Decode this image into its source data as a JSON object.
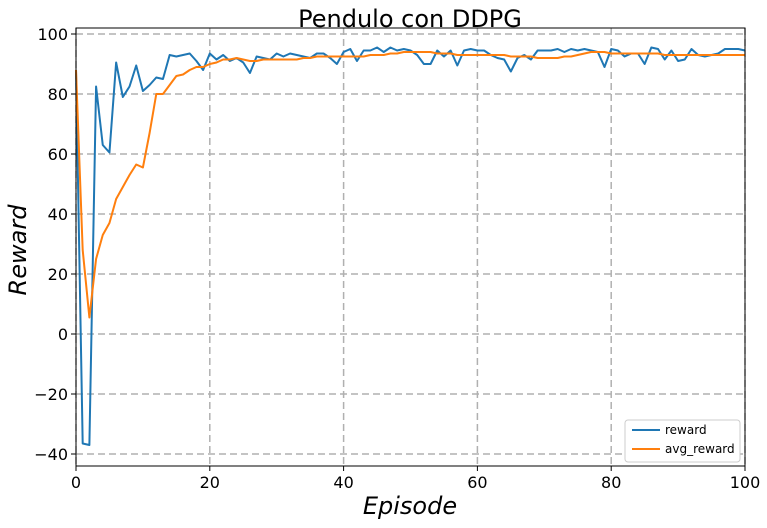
{
  "chart_data": {
    "type": "line",
    "title": "Pendulo con DDPG",
    "xlabel": "Episode",
    "ylabel": "Reward",
    "xlim": [
      0,
      100
    ],
    "ylim": [
      -44,
      102
    ],
    "xticks": [
      0,
      20,
      40,
      60,
      80,
      100
    ],
    "yticks": [
      -40,
      -20,
      0,
      20,
      40,
      60,
      80,
      100
    ],
    "xtick_labels": [
      "0",
      "20",
      "40",
      "60",
      "80",
      "100"
    ],
    "ytick_labels": [
      "−40",
      "−20",
      "0",
      "20",
      "40",
      "60",
      "80",
      "100"
    ],
    "grid": true,
    "legend_position": "lower-right",
    "x": [
      0,
      1,
      2,
      3,
      4,
      5,
      6,
      7,
      8,
      9,
      10,
      11,
      12,
      13,
      14,
      15,
      16,
      17,
      18,
      19,
      20,
      21,
      22,
      23,
      24,
      25,
      26,
      27,
      28,
      29,
      30,
      31,
      32,
      33,
      34,
      35,
      36,
      37,
      38,
      39,
      40,
      41,
      42,
      43,
      44,
      45,
      46,
      47,
      48,
      49,
      50,
      51,
      52,
      53,
      54,
      55,
      56,
      57,
      58,
      59,
      60,
      61,
      62,
      63,
      64,
      65,
      66,
      67,
      68,
      69,
      70,
      71,
      72,
      73,
      74,
      75,
      76,
      77,
      78,
      79,
      80,
      81,
      82,
      83,
      84,
      85,
      86,
      87,
      88,
      89,
      90,
      91,
      92,
      93,
      94,
      95,
      96,
      97,
      98,
      99,
      100
    ],
    "series": [
      {
        "name": "reward",
        "color": "#1f77b4",
        "values": [
          88,
          -36.5,
          -37,
          82.5,
          63,
          60.5,
          90.5,
          79,
          82.5,
          89.5,
          81,
          83,
          85.5,
          85,
          93,
          92.5,
          93,
          93.5,
          91,
          88,
          93.5,
          91.5,
          93,
          91,
          92,
          90.5,
          87,
          92.5,
          92,
          91.5,
          93.5,
          92.5,
          93.5,
          93,
          92.5,
          92,
          93.5,
          93.5,
          92,
          90,
          94,
          95,
          91,
          94.5,
          94.5,
          95.5,
          94,
          95.5,
          94.5,
          95,
          94.5,
          93,
          90,
          90,
          94.5,
          92.5,
          94.5,
          89.5,
          94.5,
          95,
          94.5,
          94.5,
          93,
          92,
          91.5,
          87.5,
          92,
          93,
          91.5,
          94.5,
          94.5,
          94.5,
          95,
          94,
          95,
          94.5,
          95,
          94.5,
          94,
          89,
          95,
          94.5,
          92.5,
          93.5,
          93.5,
          90,
          95.5,
          95,
          91.5,
          94.5,
          91,
          91.5,
          95,
          93,
          92.5,
          93,
          93.5,
          95,
          95,
          95,
          94.5
        ]
      },
      {
        "name": "avg_reward",
        "color": "#ff7f0e",
        "values": [
          88,
          28,
          5.5,
          25,
          33,
          37,
          45,
          49,
          53,
          56.5,
          55.5,
          67,
          80,
          80,
          83,
          86,
          86.5,
          88,
          89,
          89,
          90,
          90.5,
          91.5,
          91.5,
          92,
          91.5,
          91,
          91,
          91.5,
          91.5,
          91.5,
          91.5,
          91.5,
          91.5,
          92,
          92,
          92.5,
          92.5,
          92.5,
          92.5,
          92.5,
          92.5,
          92.5,
          92.5,
          93,
          93,
          93,
          93.5,
          93.5,
          94,
          94,
          94,
          94,
          94,
          93.5,
          93.5,
          93.5,
          93,
          93,
          93,
          93,
          93,
          93,
          93,
          93,
          92.5,
          92.5,
          92.5,
          92.5,
          92,
          92,
          92,
          92,
          92.5,
          92.5,
          93,
          93.5,
          94,
          94,
          94,
          93.5,
          93.5,
          93.5,
          93.5,
          93.5,
          93.5,
          93.5,
          93.5,
          93,
          93,
          93,
          93,
          93,
          93,
          93,
          93,
          93,
          93,
          93,
          93,
          93
        ]
      }
    ]
  }
}
